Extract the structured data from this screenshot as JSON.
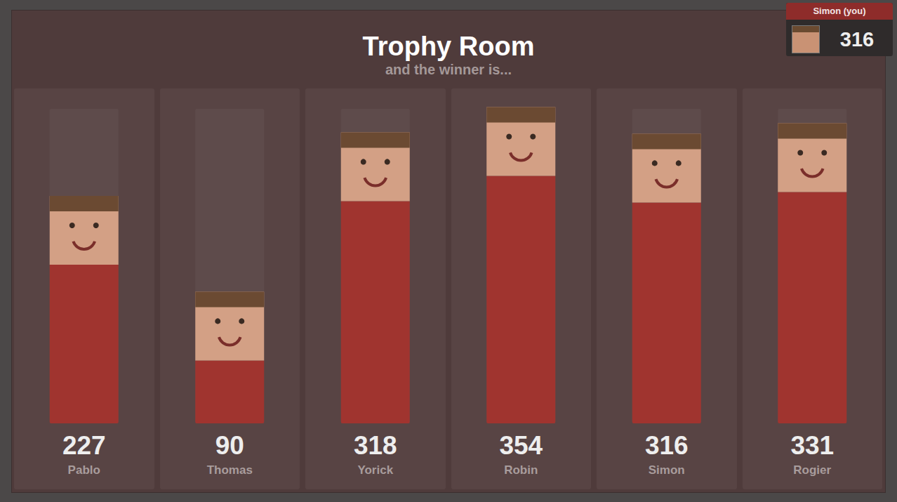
{
  "chart_data": {
    "type": "bar",
    "title": "Trophy Room",
    "subtitle": "and the winner is...",
    "categories": [
      "Pablo",
      "Thomas",
      "Yorick",
      "Robin",
      "Simon",
      "Rogier"
    ],
    "values": [
      227,
      90,
      318,
      354,
      316,
      331
    ],
    "color": "#a0342f",
    "ylim": [
      0,
      450
    ],
    "grid": false,
    "data_labels": true,
    "tick_labels": false
  },
  "badge": {
    "label": "Simon (you)",
    "value": 316
  }
}
